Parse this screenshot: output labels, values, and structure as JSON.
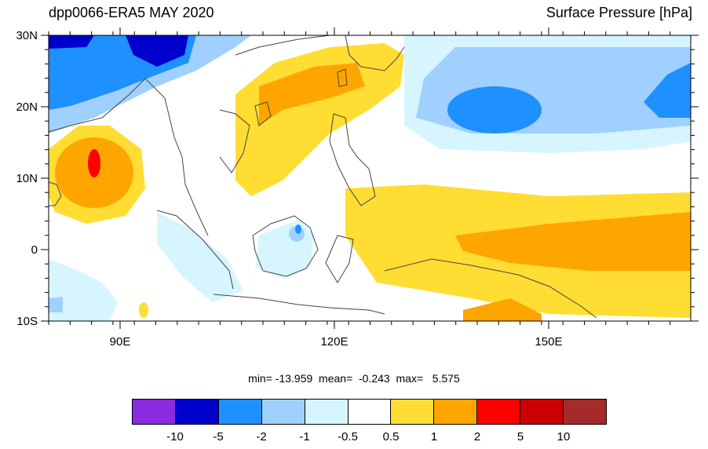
{
  "title_left": "dpp0066-ERA5 MAY 2020",
  "title_right": "Surface Pressure [hPa]",
  "lat_labels": [
    "30N",
    "20N",
    "10N",
    "0",
    "10S"
  ],
  "lon_labels": [
    "90E",
    "120E",
    "150E"
  ],
  "stats": "min= -13.959  mean=  -0.243  max=   5.575",
  "colorbar": {
    "colors": [
      "#8a2be2",
      "#0000cd",
      "#1e90ff",
      "#9fd0ff",
      "#d6f5ff",
      "#ffffff",
      "#ffdd33",
      "#ffa500",
      "#ff0000",
      "#cc0000",
      "#a52a2a"
    ],
    "labels": [
      "-10",
      "-5",
      "-2",
      "-1",
      "-0.5",
      "0.5",
      "1",
      "2",
      "5",
      "10"
    ]
  }
}
